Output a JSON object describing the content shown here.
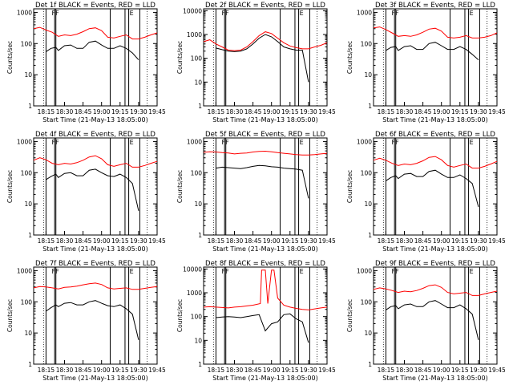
{
  "figure": {
    "start_time_label": "Start Time (21-May-13 18:05:00)",
    "ylabel": "Counts/sec",
    "xticks": [
      "18:15",
      "18:30",
      "18:45",
      "19:00",
      "19:15",
      "19:30",
      "19:45"
    ],
    "yticks": [
      "1",
      "10",
      "100",
      "1000"
    ],
    "yticks_wide": [
      "1",
      "10",
      "100",
      "1000",
      "10000"
    ],
    "colors": {
      "events": "#000000",
      "lld": "#ff0000",
      "frame": "#000000",
      "background": "#ffffff"
    }
  },
  "chart_data": [
    {
      "type": "line",
      "title": "Det 1f BLACK = Events, RED = LLD",
      "xlabel": "Start Time (21-May-13 18:05:00)",
      "ylabel": "Counts/sec",
      "xlim_minutes": [
        0,
        100
      ],
      "ylim": [
        1,
        1300
      ],
      "yscale": "log",
      "markers": [
        "F",
        "F",
        "E"
      ],
      "series": [
        {
          "name": "Events",
          "color": "#000000",
          "x": [
            10,
            14,
            18,
            20,
            25,
            30,
            35,
            40,
            45,
            50,
            55,
            60,
            65,
            70,
            75,
            80,
            85
          ],
          "y": [
            55,
            70,
            75,
            60,
            85,
            90,
            70,
            70,
            110,
            120,
            90,
            70,
            70,
            85,
            70,
            50,
            30
          ]
        },
        {
          "name": "LLD",
          "color": "#ff0000",
          "x": [
            0,
            5,
            10,
            15,
            20,
            25,
            30,
            35,
            40,
            45,
            50,
            55,
            60,
            65,
            70,
            75,
            80,
            85,
            90,
            95,
            100
          ],
          "y": [
            300,
            330,
            270,
            230,
            170,
            190,
            180,
            200,
            240,
            300,
            320,
            260,
            160,
            150,
            170,
            190,
            140,
            140,
            160,
            190,
            220
          ]
        }
      ]
    },
    {
      "type": "line",
      "title": "Det 2f BLACK = Events, RED = LLD",
      "xlabel": "Start Time (21-May-13 18:05:00)",
      "ylabel": "Counts/sec",
      "xlim_minutes": [
        0,
        100
      ],
      "ylim": [
        1,
        12000
      ],
      "yscale": "log",
      "markers": [
        "F",
        "F",
        "E"
      ],
      "series": [
        {
          "name": "Events",
          "color": "#000000",
          "x": [
            10,
            15,
            20,
            25,
            30,
            35,
            40,
            45,
            50,
            55,
            60,
            65,
            70,
            75,
            80,
            85
          ],
          "y": [
            270,
            230,
            200,
            190,
            200,
            250,
            400,
            700,
            1000,
            800,
            500,
            300,
            250,
            220,
            220,
            10
          ]
        },
        {
          "name": "LLD",
          "color": "#ff0000",
          "x": [
            0,
            5,
            10,
            15,
            20,
            25,
            30,
            35,
            40,
            45,
            50,
            55,
            60,
            65,
            70,
            75,
            80,
            85,
            90,
            95,
            100
          ],
          "y": [
            500,
            600,
            400,
            300,
            220,
            210,
            220,
            300,
            500,
            900,
            1300,
            1100,
            700,
            450,
            330,
            280,
            250,
            250,
            300,
            350,
            450
          ]
        }
      ]
    },
    {
      "type": "line",
      "title": "Det 3f BLACK = Events, RED = LLD",
      "xlabel": "Start Time (21-May-13 18:05:00)",
      "ylabel": "Counts/sec",
      "xlim_minutes": [
        0,
        100
      ],
      "ylim": [
        1,
        1300
      ],
      "yscale": "log",
      "markers": [
        "F",
        "F",
        "E"
      ],
      "series": [
        {
          "name": "Events",
          "color": "#000000",
          "x": [
            10,
            14,
            18,
            20,
            25,
            30,
            35,
            40,
            45,
            50,
            55,
            60,
            65,
            70,
            75,
            80,
            85
          ],
          "y": [
            60,
            75,
            80,
            60,
            80,
            85,
            65,
            65,
            100,
            110,
            85,
            65,
            65,
            80,
            65,
            45,
            30
          ]
        },
        {
          "name": "LLD",
          "color": "#ff0000",
          "x": [
            0,
            5,
            10,
            15,
            20,
            25,
            30,
            35,
            40,
            45,
            50,
            55,
            60,
            65,
            70,
            75,
            80,
            85,
            90,
            95,
            100
          ],
          "y": [
            320,
            340,
            280,
            220,
            170,
            180,
            170,
            190,
            230,
            290,
            310,
            250,
            160,
            150,
            160,
            180,
            150,
            150,
            160,
            180,
            220
          ]
        }
      ]
    },
    {
      "type": "line",
      "title": "Det 4f BLACK = Events, RED = LLD",
      "xlabel": "Start Time (21-May-13 18:05:00)",
      "ylabel": "Counts/sec",
      "xlim_minutes": [
        0,
        100
      ],
      "ylim": [
        1,
        1300
      ],
      "yscale": "log",
      "markers": [
        "F",
        "F",
        "E"
      ],
      "series": [
        {
          "name": "Events",
          "color": "#000000",
          "x": [
            10,
            14,
            18,
            20,
            25,
            30,
            35,
            40,
            45,
            50,
            55,
            60,
            65,
            70,
            75,
            80,
            85
          ],
          "y": [
            60,
            75,
            90,
            70,
            95,
            100,
            80,
            80,
            120,
            130,
            100,
            80,
            75,
            90,
            70,
            45,
            6
          ]
        },
        {
          "name": "LLD",
          "color": "#ff0000",
          "x": [
            0,
            5,
            10,
            15,
            20,
            25,
            30,
            35,
            40,
            45,
            50,
            55,
            60,
            65,
            70,
            75,
            80,
            85,
            90,
            95,
            100
          ],
          "y": [
            250,
            300,
            260,
            200,
            180,
            200,
            190,
            210,
            250,
            320,
            350,
            280,
            180,
            160,
            180,
            200,
            150,
            150,
            170,
            200,
            230
          ]
        }
      ]
    },
    {
      "type": "line",
      "title": "Det 5f BLACK = Events, RED = LLD",
      "xlabel": "Start Time (21-May-13 18:05:00)",
      "ylabel": "Counts/sec",
      "xlim_minutes": [
        0,
        100
      ],
      "ylim": [
        1,
        1300
      ],
      "yscale": "log",
      "markers": [
        "F",
        "F",
        "E"
      ],
      "series": [
        {
          "name": "Events",
          "color": "#000000",
          "x": [
            10,
            15,
            20,
            25,
            30,
            35,
            40,
            45,
            50,
            55,
            60,
            65,
            70,
            75,
            80,
            85
          ],
          "y": [
            140,
            150,
            145,
            140,
            135,
            145,
            160,
            170,
            165,
            155,
            150,
            140,
            135,
            130,
            120,
            15
          ]
        },
        {
          "name": "LLD",
          "color": "#ff0000",
          "x": [
            0,
            5,
            10,
            15,
            20,
            25,
            30,
            35,
            40,
            45,
            50,
            55,
            60,
            65,
            70,
            75,
            80,
            85,
            90,
            95,
            100
          ],
          "y": [
            450,
            470,
            460,
            440,
            430,
            400,
            420,
            430,
            460,
            480,
            490,
            470,
            440,
            420,
            400,
            380,
            370,
            370,
            380,
            400,
            420
          ]
        }
      ]
    },
    {
      "type": "line",
      "title": "Det 6f BLACK = Events, RED = LLD",
      "xlabel": "Start Time (21-May-13 18:05:00)",
      "ylabel": "Counts/sec",
      "xlim_minutes": [
        0,
        100
      ],
      "ylim": [
        1,
        1300
      ],
      "yscale": "log",
      "markers": [
        "F",
        "F",
        "E"
      ],
      "series": [
        {
          "name": "Events",
          "color": "#000000",
          "x": [
            10,
            14,
            18,
            20,
            25,
            30,
            35,
            40,
            45,
            50,
            55,
            60,
            65,
            70,
            75,
            80,
            85
          ],
          "y": [
            55,
            70,
            80,
            65,
            90,
            95,
            75,
            75,
            110,
            120,
            90,
            70,
            70,
            85,
            65,
            45,
            8
          ]
        },
        {
          "name": "LLD",
          "color": "#ff0000",
          "x": [
            0,
            5,
            10,
            15,
            20,
            25,
            30,
            35,
            40,
            45,
            50,
            55,
            60,
            65,
            70,
            75,
            80,
            85,
            90,
            95,
            100
          ],
          "y": [
            250,
            290,
            250,
            200,
            170,
            190,
            180,
            200,
            240,
            310,
            330,
            260,
            170,
            150,
            170,
            190,
            140,
            140,
            160,
            190,
            230
          ]
        }
      ]
    },
    {
      "type": "line",
      "title": "Det 7f BLACK = Events, RED = LLD",
      "xlabel": "Start Time (21-May-13 18:05:00)",
      "ylabel": "Counts/sec",
      "xlim_minutes": [
        0,
        100
      ],
      "ylim": [
        1,
        1300
      ],
      "yscale": "log",
      "markers": [
        "F",
        "F",
        "E"
      ],
      "series": [
        {
          "name": "Events",
          "color": "#000000",
          "x": [
            10,
            14,
            18,
            20,
            25,
            30,
            35,
            40,
            45,
            50,
            55,
            60,
            65,
            70,
            75,
            80,
            85
          ],
          "y": [
            50,
            65,
            80,
            70,
            90,
            95,
            80,
            80,
            100,
            110,
            90,
            75,
            70,
            80,
            60,
            40,
            6
          ]
        },
        {
          "name": "LLD",
          "color": "#ff0000",
          "x": [
            0,
            5,
            10,
            15,
            20,
            25,
            30,
            35,
            40,
            45,
            50,
            55,
            60,
            65,
            70,
            75,
            80,
            85,
            90,
            95,
            100
          ],
          "y": [
            280,
            310,
            300,
            280,
            260,
            290,
            300,
            320,
            350,
            380,
            400,
            360,
            280,
            260,
            270,
            280,
            250,
            250,
            270,
            290,
            310
          ]
        }
      ]
    },
    {
      "type": "line",
      "title": "Det 8f BLACK = Events, RED = LLD",
      "xlabel": "Start Time (21-May-13 18:05:00)",
      "ylabel": "Counts/sec",
      "xlim_minutes": [
        0,
        100
      ],
      "ylim": [
        1,
        12000
      ],
      "yscale": "log",
      "markers": [
        "F",
        "F",
        "E"
      ],
      "series": [
        {
          "name": "Events",
          "color": "#000000",
          "x": [
            10,
            15,
            20,
            25,
            30,
            35,
            40,
            45,
            50,
            55,
            60,
            65,
            70,
            75,
            80,
            85
          ],
          "y": [
            90,
            95,
            100,
            95,
            90,
            100,
            110,
            120,
            25,
            50,
            60,
            120,
            130,
            80,
            60,
            8
          ]
        },
        {
          "name": "LLD",
          "color": "#ff0000",
          "x": [
            0,
            5,
            10,
            15,
            20,
            25,
            30,
            35,
            40,
            46,
            47,
            50,
            52,
            55,
            57,
            60,
            65,
            70,
            75,
            80,
            85,
            90,
            95,
            100
          ],
          "y": [
            250,
            260,
            250,
            240,
            230,
            250,
            260,
            280,
            300,
            350,
            9000,
            9000,
            350,
            9000,
            9000,
            600,
            300,
            250,
            220,
            200,
            190,
            210,
            230,
            250
          ]
        }
      ]
    },
    {
      "type": "line",
      "title": "Det 9f BLACK = Events, RED = LLD",
      "xlabel": "Start Time (21-May-13 18:05:00)",
      "ylabel": "Counts/sec",
      "xlim_minutes": [
        0,
        100
      ],
      "ylim": [
        1,
        1300
      ],
      "yscale": "log",
      "markers": [
        "F",
        "F",
        "E"
      ],
      "series": [
        {
          "name": "Events",
          "color": "#000000",
          "x": [
            10,
            14,
            18,
            20,
            25,
            30,
            35,
            40,
            45,
            50,
            55,
            60,
            65,
            70,
            75,
            80,
            85
          ],
          "y": [
            55,
            70,
            75,
            60,
            80,
            85,
            70,
            70,
            100,
            110,
            85,
            65,
            65,
            80,
            60,
            40,
            6
          ]
        },
        {
          "name": "LLD",
          "color": "#ff0000",
          "x": [
            0,
            5,
            10,
            15,
            20,
            25,
            30,
            35,
            40,
            45,
            50,
            55,
            60,
            65,
            70,
            75,
            80,
            85,
            90,
            95,
            100
          ],
          "y": [
            250,
            280,
            260,
            230,
            200,
            220,
            210,
            230,
            270,
            330,
            350,
            290,
            200,
            180,
            190,
            200,
            160,
            160,
            180,
            200,
            220
          ]
        }
      ]
    }
  ]
}
